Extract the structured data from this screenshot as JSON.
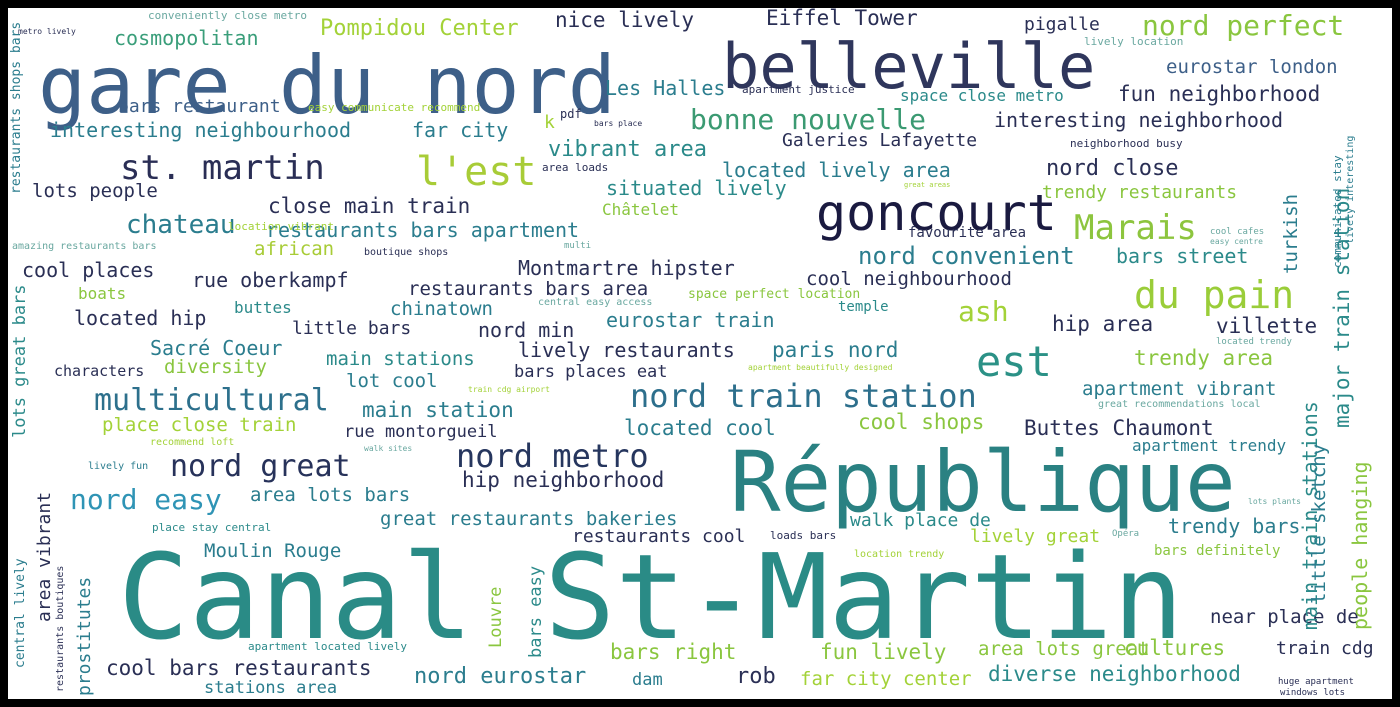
{
  "palette": {
    "background": "#000000",
    "canvas": "#ffffff",
    "c1": "#2c7e8e",
    "c2": "#3b528b",
    "c3": "#21918c",
    "c4": "#5ec962",
    "c5": "#a0da39",
    "c6": "#1f1f5c",
    "c7": "#35b779",
    "c8": "#31688e"
  },
  "words": [
    {
      "text": "Canal St-Martin",
      "color": "#2a8b86"
    },
    {
      "text": "République",
      "color": "#2a8182"
    },
    {
      "text": "gare du nord",
      "color": "#3d5f88"
    },
    {
      "text": "belleville",
      "color": "#2f365c"
    },
    {
      "text": "goncourt",
      "color": "#1a1a40"
    },
    {
      "text": "est",
      "color": "#2b9186"
    },
    {
      "text": "st. martin",
      "color": "#2a2e55"
    },
    {
      "text": "l'est",
      "color": "#a8cc37"
    },
    {
      "text": "du pain",
      "color": "#9acd39"
    },
    {
      "text": "Marais",
      "color": "#8dc53e"
    },
    {
      "text": "nord perfect",
      "color": "#8ac63f"
    },
    {
      "text": "bonne nouvelle",
      "color": "#3b9a72"
    },
    {
      "text": "nord train station",
      "color": "#2d6f8c"
    },
    {
      "text": "nord metro",
      "color": "#26365e"
    },
    {
      "text": "nord great",
      "color": "#27325a"
    },
    {
      "text": "multicultural",
      "color": "#2d708c"
    },
    {
      "text": "chateau",
      "color": "#2b7d8e"
    },
    {
      "text": "nord easy",
      "color": "#2f94b5"
    },
    {
      "text": "ash",
      "color": "#a3d238"
    },
    {
      "text": "Pompidou Center",
      "color": "#a3d238"
    },
    {
      "text": "nice lively",
      "color": "#2a2f55"
    },
    {
      "text": "Eiffel Tower",
      "color": "#2a2f55"
    },
    {
      "text": "cosmopolitan",
      "color": "#3a9e7a"
    },
    {
      "text": "Les Halles",
      "color": "#2b7d8e"
    },
    {
      "text": "pigalle",
      "color": "#2a2f55"
    },
    {
      "text": "eurostar london",
      "color": "#3d5f88"
    },
    {
      "text": "fun neighborhood",
      "color": "#2a2f55"
    },
    {
      "text": "interesting neighbourhood",
      "color": "#2b7d8e"
    },
    {
      "text": "far city",
      "color": "#2b7d8e"
    },
    {
      "text": "interesting neighborhood",
      "color": "#2a2f55"
    },
    {
      "text": "bars restaurant",
      "color": "#3d5f88"
    },
    {
      "text": "vibrant area",
      "color": "#2b8a8a"
    },
    {
      "text": "Galeries Lafayette",
      "color": "#2a2f55"
    },
    {
      "text": "nord close",
      "color": "#2a2f55"
    },
    {
      "text": "located lively area",
      "color": "#2b7d8e"
    },
    {
      "text": "situated lively",
      "color": "#2b8a8a"
    },
    {
      "text": "trendy restaurants",
      "color": "#8ac63f"
    },
    {
      "text": "lots people",
      "color": "#2a2f55"
    },
    {
      "text": "close main train",
      "color": "#2a2f55"
    },
    {
      "text": "Châtelet",
      "color": "#8ac63f"
    },
    {
      "text": "restaurants bars apartment",
      "color": "#2b7d8e"
    },
    {
      "text": "favourite area",
      "color": "#2a2f55"
    },
    {
      "text": "african",
      "color": "#a8cc37"
    },
    {
      "text": "cool places",
      "color": "#2a2f55"
    },
    {
      "text": "rue oberkampf",
      "color": "#2a2f55"
    },
    {
      "text": "Montmartre hipster",
      "color": "#2a2f55"
    },
    {
      "text": "nord convenient",
      "color": "#2b7d8e"
    },
    {
      "text": "bars street",
      "color": "#2b8a8a"
    },
    {
      "text": "cool neighbourhood",
      "color": "#2a2f55"
    },
    {
      "text": "restaurants bars area",
      "color": "#2a2f55"
    },
    {
      "text": "boats",
      "color": "#8ac63f"
    },
    {
      "text": "buttes",
      "color": "#2b8a8a"
    },
    {
      "text": "chinatown",
      "color": "#2b7d8e"
    },
    {
      "text": "space perfect location",
      "color": "#8ac63f"
    },
    {
      "text": "temple",
      "color": "#2b8a8a"
    },
    {
      "text": "located hip",
      "color": "#2a2f55"
    },
    {
      "text": "little bars",
      "color": "#2a2f55"
    },
    {
      "text": "nord min",
      "color": "#2a2f55"
    },
    {
      "text": "eurostar train",
      "color": "#2b7d8e"
    },
    {
      "text": "hip area",
      "color": "#2a2f55"
    },
    {
      "text": "villette",
      "color": "#2a2f55"
    },
    {
      "text": "Sacré Coeur",
      "color": "#2b7d8e"
    },
    {
      "text": "lively restaurants",
      "color": "#2a2f55"
    },
    {
      "text": "paris nord",
      "color": "#2b7d8e"
    },
    {
      "text": "main stations",
      "color": "#2b8a8a"
    },
    {
      "text": "diversity",
      "color": "#8ac63f"
    },
    {
      "text": "characters",
      "color": "#2a2f55"
    },
    {
      "text": "bars places eat",
      "color": "#2a2f55"
    },
    {
      "text": "lot cool",
      "color": "#2b7d8e"
    },
    {
      "text": "trendy area",
      "color": "#8ac63f"
    },
    {
      "text": "apartment vibrant",
      "color": "#2b7d8e"
    },
    {
      "text": "main station",
      "color": "#2b7d8e"
    },
    {
      "text": "place close train",
      "color": "#a3d238"
    },
    {
      "text": "rue montorgueil",
      "color": "#2a2f55"
    },
    {
      "text": "located cool",
      "color": "#2b7d8e"
    },
    {
      "text": "cool shops",
      "color": "#8ac63f"
    },
    {
      "text": "Buttes Chaumont",
      "color": "#2a2f55"
    },
    {
      "text": "apartment trendy",
      "color": "#2b7d8e"
    },
    {
      "text": "hip neighborhood",
      "color": "#2a2f55"
    },
    {
      "text": "area lots bars",
      "color": "#2b7d8e"
    },
    {
      "text": "walk place de",
      "color": "#2b8a8a"
    },
    {
      "text": "trendy bars",
      "color": "#2b7d8e"
    },
    {
      "text": "great restaurants bakeries",
      "color": "#2b7d8e"
    },
    {
      "text": "restaurants cool",
      "color": "#2a2f55"
    },
    {
      "text": "lively great",
      "color": "#a3d238"
    },
    {
      "text": "Moulin Rouge",
      "color": "#2b7d8e"
    },
    {
      "text": "bars definitely",
      "color": "#8ac63f"
    },
    {
      "text": "near place de",
      "color": "#2a2f55"
    },
    {
      "text": "bars right",
      "color": "#8ac63f"
    },
    {
      "text": "fun lively",
      "color": "#8ac63f"
    },
    {
      "text": "area lots great",
      "color": "#8ac63f"
    },
    {
      "text": "cultures",
      "color": "#8ac63f"
    },
    {
      "text": "train cdg",
      "color": "#2a2f55"
    },
    {
      "text": "cool bars restaurants",
      "color": "#2a2f55"
    },
    {
      "text": "nord eurostar",
      "color": "#2b7d8e"
    },
    {
      "text": "rob",
      "color": "#2a2f55"
    },
    {
      "text": "dam",
      "color": "#2b7d8e"
    },
    {
      "text": "far city center",
      "color": "#a3d238"
    },
    {
      "text": "diverse neighborhood",
      "color": "#2b8a8a"
    },
    {
      "text": "stations area",
      "color": "#2b7d8e"
    },
    {
      "text": "space close metro",
      "color": "#2b8a8a"
    },
    {
      "text": "conveniently close metro",
      "color": "#6aa8a0"
    },
    {
      "text": "easy communicate recommend",
      "color": "#a3d238"
    },
    {
      "text": "apartment justice",
      "color": "#2a2f55"
    },
    {
      "text": "lively location",
      "color": "#6aa8a0"
    },
    {
      "text": "area loads",
      "color": "#2a2f55"
    },
    {
      "text": "neighborhood busy",
      "color": "#2a2f55"
    },
    {
      "text": "location vibrant",
      "color": "#a3d238"
    },
    {
      "text": "amazing restaurants bars",
      "color": "#6aa8a0"
    },
    {
      "text": "boutique shops",
      "color": "#2a2f55"
    },
    {
      "text": "central easy access",
      "color": "#6aa8a0"
    },
    {
      "text": "apartment beautifully designed",
      "color": "#a3d238"
    },
    {
      "text": "recommend loft",
      "color": "#a3d238"
    },
    {
      "text": "walk sites",
      "color": "#6aa8a0"
    },
    {
      "text": "lively fun",
      "color": "#2b7d8e"
    },
    {
      "text": "place stay central",
      "color": "#2b8a8a"
    },
    {
      "text": "loads bars",
      "color": "#2a2f55"
    },
    {
      "text": "location trendy",
      "color": "#a3d238"
    },
    {
      "text": "Opéra",
      "color": "#6aa8a0"
    },
    {
      "text": "apartment located lively",
      "color": "#2b8a8a"
    },
    {
      "text": "great recommendations local",
      "color": "#6aa8a0"
    },
    {
      "text": "located trendy",
      "color": "#6aa8a0"
    },
    {
      "text": "lots plants",
      "color": "#6aa8a0"
    },
    {
      "text": "huge apartment",
      "color": "#2a2f55"
    },
    {
      "text": "windows lots",
      "color": "#2a2f55"
    },
    {
      "text": "metro lively",
      "color": "#2a2f55"
    },
    {
      "text": "pdf",
      "color": "#2a2f55"
    },
    {
      "text": "bars place",
      "color": "#2a2f55"
    },
    {
      "text": "k",
      "color": "#a3d238"
    },
    {
      "text": "cool cafes",
      "color": "#6aa8a0"
    },
    {
      "text": "easy centre",
      "color": "#6aa8a0"
    },
    {
      "text": "train cdg airport",
      "color": "#a3d238"
    },
    {
      "text": "multi",
      "color": "#6aa8a0"
    },
    {
      "text": "great areas",
      "color": "#a3d238"
    },
    {
      "text": "restaurants shops bars",
      "color": "#2b7d8e"
    },
    {
      "text": "lots great bars",
      "color": "#2b8a8a"
    },
    {
      "text": "area vibrant",
      "color": "#2a2f55"
    },
    {
      "text": "central lively",
      "color": "#2b7d8e"
    },
    {
      "text": "restaurants boutiques",
      "color": "#2a2f55"
    },
    {
      "text": "prostitutes",
      "color": "#2b7d8e"
    },
    {
      "text": "Louvre",
      "color": "#8ac63f"
    },
    {
      "text": "bars easy",
      "color": "#2b8a8a"
    },
    {
      "text": "turkish",
      "color": "#2b7d8e"
    },
    {
      "text": "main train stations",
      "color": "#2b8a8a"
    },
    {
      "text": "little sketchy",
      "color": "#2b7d8e"
    },
    {
      "text": "major train station",
      "color": "#2b8a8a"
    },
    {
      "text": "people hanging",
      "color": "#8ac63f"
    },
    {
      "text": "communicated stay",
      "color": "#2b7d8e"
    },
    {
      "text": "lively interesting",
      "color": "#2b7d8e"
    }
  ]
}
